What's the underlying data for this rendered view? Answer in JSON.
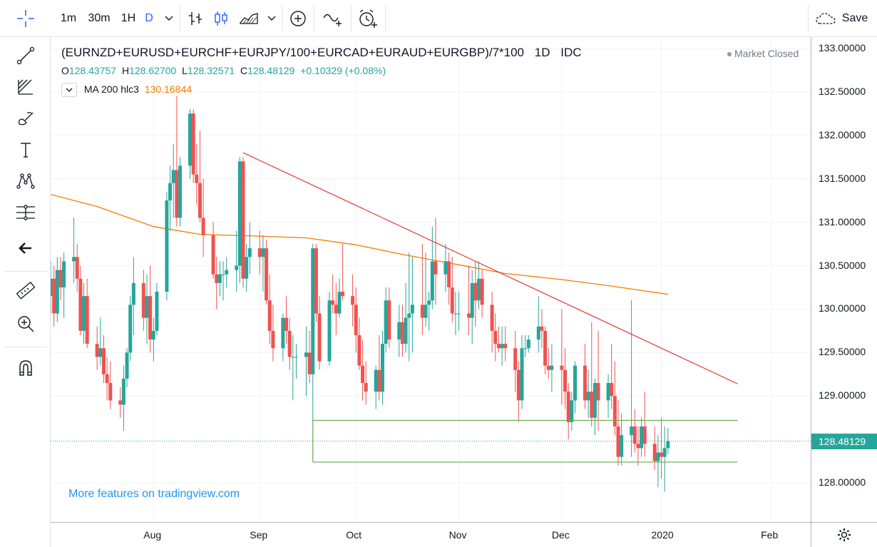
{
  "toolbar": {
    "intervals": [
      "1m",
      "30m",
      "1H",
      "D"
    ],
    "active_interval": "D",
    "save_label": "Save"
  },
  "legend": {
    "symbol": "(EURNZD+EURUSD+EURCHF+EURJPY/100+EURCAD+EURAUD+EURGBP)/7*100",
    "interval": "1D",
    "source": "IDC",
    "market_status": "Market Closed",
    "open_label": "O",
    "open": "128.43757",
    "high_label": "H",
    "high": "128.62700",
    "low_label": "L",
    "low": "128.32571",
    "close_label": "C",
    "close": "128.48129",
    "change": "+0.10329 (+0.08%)",
    "ma_label": "MA 200 hlc3",
    "ma_value": "130.16844"
  },
  "watermark": "More features on tradingview.com",
  "colors": {
    "up": "#26a69a",
    "down": "#ef5350",
    "ma": "#f57c00",
    "trendline": "#e53935",
    "range": "#6aa84f",
    "accent": "#2962ff",
    "last_price_bg": "#26a69a"
  },
  "icons": [
    "crosshair-icon",
    "trend-line-icon",
    "fib-icon",
    "brush-icon",
    "text-icon",
    "pattern-icon",
    "forecast-icon",
    "back-arrow-icon",
    "ruler-icon",
    "zoom-in-icon",
    "magnet-icon",
    "bar-style-icon",
    "candle-style-icon",
    "area-style-icon",
    "add-indicator-icon",
    "compare-icon",
    "alert-icon",
    "cloud-save-icon",
    "settings-icon"
  ],
  "chart_data": {
    "type": "candlestick",
    "price_labels": [
      "133.00000",
      "132.50000",
      "132.00000",
      "131.50000",
      "131.00000",
      "130.50000",
      "130.00000",
      "129.50000",
      "129.00000",
      "128.00000"
    ],
    "price_ticks": [
      133.0,
      132.5,
      132.0,
      131.5,
      131.0,
      130.5,
      130.0,
      129.5,
      129.0,
      128.0
    ],
    "time_labels": [
      "Aug",
      "Sep",
      "Oct",
      "Nov",
      "Dec",
      "2020",
      "Feb"
    ],
    "time_ticks": [
      "2019-08-01",
      "2019-09-02",
      "2019-10-01",
      "2019-11-01",
      "2019-12-02",
      "2020-01-01",
      "2020-02-03"
    ],
    "x_range": [
      "2019-07-01",
      "2020-02-15"
    ],
    "ylim": [
      127.55,
      133.13
    ],
    "last_price": 128.48129,
    "last_price_label": "128.48129",
    "grid": true,
    "candles": [
      [
        "2019-07-01",
        130.15,
        130.55,
        129.95,
        130.35
      ],
      [
        "2019-07-02",
        130.35,
        130.5,
        129.8,
        129.95
      ],
      [
        "2019-07-03",
        129.95,
        130.6,
        129.85,
        130.45
      ],
      [
        "2019-07-04",
        130.45,
        130.6,
        130.1,
        130.25
      ],
      [
        "2019-07-05",
        130.25,
        130.65,
        129.9,
        130.55
      ],
      [
        "2019-07-08",
        130.55,
        131.05,
        130.3,
        130.6
      ],
      [
        "2019-07-09",
        130.6,
        130.75,
        130.2,
        130.35
      ],
      [
        "2019-07-10",
        130.35,
        130.5,
        129.7,
        129.75
      ],
      [
        "2019-07-11",
        129.75,
        130.3,
        129.6,
        130.15
      ],
      [
        "2019-07-12",
        130.15,
        130.35,
        129.55,
        129.6
      ],
      [
        "2019-07-15",
        129.6,
        129.8,
        129.3,
        129.45
      ],
      [
        "2019-07-16",
        129.45,
        129.9,
        129.35,
        129.55
      ],
      [
        "2019-07-17",
        129.55,
        129.7,
        129.15,
        129.25
      ],
      [
        "2019-07-18",
        129.25,
        129.45,
        128.95,
        129.15
      ],
      [
        "2019-07-19",
        129.15,
        129.4,
        128.85,
        128.95
      ],
      [
        "2019-07-22",
        128.95,
        129.1,
        128.75,
        128.9
      ],
      [
        "2019-07-23",
        128.9,
        129.35,
        128.6,
        129.2
      ],
      [
        "2019-07-24",
        129.2,
        129.55,
        129.1,
        129.5
      ],
      [
        "2019-07-25",
        129.5,
        130.15,
        129.4,
        130.05
      ],
      [
        "2019-07-26",
        130.05,
        130.6,
        129.7,
        130.3
      ],
      [
        "2019-07-29",
        130.3,
        130.45,
        129.75,
        129.9
      ],
      [
        "2019-07-30",
        129.9,
        130.4,
        129.6,
        130.15
      ],
      [
        "2019-07-31",
        130.15,
        130.5,
        129.5,
        129.65
      ],
      [
        "2019-08-01",
        129.65,
        129.9,
        129.4,
        129.75
      ],
      [
        "2019-08-02",
        129.75,
        130.3,
        129.7,
        130.2
      ],
      [
        "2019-08-05",
        130.2,
        131.35,
        130.1,
        131.25
      ],
      [
        "2019-08-06",
        131.25,
        131.65,
        130.9,
        131.45
      ],
      [
        "2019-08-07",
        131.45,
        131.9,
        131.05,
        131.6
      ],
      [
        "2019-08-08",
        131.6,
        132.45,
        130.95,
        131.05
      ],
      [
        "2019-08-09",
        131.05,
        131.75,
        130.95,
        131.65
      ],
      [
        "2019-08-12",
        131.65,
        132.3,
        131.5,
        132.25
      ],
      [
        "2019-08-13",
        132.25,
        132.3,
        131.45,
        131.55
      ],
      [
        "2019-08-14",
        131.55,
        131.9,
        131.2,
        131.45
      ],
      [
        "2019-08-15",
        131.45,
        132.05,
        131.0,
        131.05
      ],
      [
        "2019-08-16",
        131.05,
        131.5,
        130.6,
        130.85
      ],
      [
        "2019-08-19",
        130.85,
        131.0,
        130.35,
        130.4
      ],
      [
        "2019-08-20",
        130.4,
        130.6,
        130.0,
        130.3
      ],
      [
        "2019-08-21",
        130.3,
        130.55,
        130.15,
        130.4
      ],
      [
        "2019-08-22",
        130.4,
        130.55,
        130.1,
        130.4
      ],
      [
        "2019-08-23",
        130.4,
        130.6,
        130.25,
        130.45
      ],
      [
        "2019-08-26",
        130.45,
        130.9,
        130.2,
        130.5
      ],
      [
        "2019-08-27",
        130.5,
        131.75,
        130.3,
        131.7
      ],
      [
        "2019-08-28",
        131.7,
        131.75,
        130.25,
        130.35
      ],
      [
        "2019-08-29",
        130.35,
        130.75,
        130.2,
        130.6
      ],
      [
        "2019-08-30",
        130.6,
        131.0,
        130.4,
        130.7
      ],
      [
        "2019-09-02",
        130.7,
        130.9,
        130.4,
        130.6
      ],
      [
        "2019-09-03",
        130.6,
        130.85,
        130.2,
        130.7
      ],
      [
        "2019-09-04",
        130.7,
        130.8,
        130.05,
        130.1
      ],
      [
        "2019-09-05",
        130.1,
        130.4,
        129.6,
        129.75
      ],
      [
        "2019-09-06",
        129.75,
        130.05,
        129.4,
        129.55
      ],
      [
        "2019-09-09",
        129.55,
        129.95,
        129.4,
        129.9
      ],
      [
        "2019-09-10",
        129.9,
        130.15,
        129.6,
        129.75
      ],
      [
        "2019-09-11",
        129.75,
        129.9,
        129.3,
        129.45
      ],
      [
        "2019-09-12",
        129.45,
        129.7,
        128.95,
        129.45
      ],
      [
        "2019-09-13",
        129.45,
        129.6,
        129.2,
        129.45
      ],
      [
        "2019-09-16",
        129.45,
        129.8,
        129.0,
        129.5
      ],
      [
        "2019-09-17",
        129.5,
        129.75,
        129.15,
        129.25
      ],
      [
        "2019-09-18",
        129.25,
        130.75,
        128.7,
        130.7
      ],
      [
        "2019-09-19",
        130.7,
        130.75,
        129.85,
        129.95
      ],
      [
        "2019-09-20",
        129.95,
        130.15,
        129.3,
        129.4
      ],
      [
        "2019-09-23",
        129.4,
        130.2,
        129.35,
        130.1
      ],
      [
        "2019-09-24",
        130.1,
        130.4,
        129.95,
        130.05
      ],
      [
        "2019-09-25",
        130.05,
        130.3,
        129.7,
        129.95
      ],
      [
        "2019-09-26",
        129.95,
        130.35,
        129.9,
        130.2
      ],
      [
        "2019-09-27",
        130.2,
        130.75,
        130.1,
        130.15
      ],
      [
        "2019-09-30",
        130.15,
        130.4,
        129.8,
        130.05
      ],
      [
        "2019-10-01",
        130.05,
        130.25,
        129.5,
        129.7
      ],
      [
        "2019-10-02",
        129.7,
        129.9,
        129.3,
        129.35
      ],
      [
        "2019-10-03",
        129.35,
        129.65,
        128.95,
        129.15
      ],
      [
        "2019-10-04",
        129.15,
        129.4,
        128.9,
        129.05
      ],
      [
        "2019-10-07",
        129.05,
        129.35,
        128.85,
        129.3
      ],
      [
        "2019-10-08",
        129.3,
        129.7,
        128.95,
        129.05
      ],
      [
        "2019-10-09",
        129.05,
        129.75,
        128.9,
        129.6
      ],
      [
        "2019-10-10",
        129.6,
        130.25,
        129.5,
        130.1
      ],
      [
        "2019-10-11",
        130.1,
        130.25,
        129.55,
        129.65
      ],
      [
        "2019-10-14",
        129.65,
        130.05,
        129.45,
        129.85
      ],
      [
        "2019-10-15",
        129.85,
        130.05,
        129.45,
        129.6
      ],
      [
        "2019-10-16",
        129.6,
        130.3,
        129.5,
        129.9
      ],
      [
        "2019-10-17",
        129.9,
        130.65,
        129.4,
        129.95
      ],
      [
        "2019-10-18",
        129.95,
        130.6,
        129.5,
        130.05
      ],
      [
        "2019-10-21",
        130.05,
        130.75,
        129.7,
        129.9
      ],
      [
        "2019-10-22",
        129.9,
        130.65,
        129.8,
        130.05
      ],
      [
        "2019-10-23",
        130.05,
        130.2,
        129.75,
        130.1
      ],
      [
        "2019-10-24",
        130.1,
        130.95,
        130.0,
        130.55
      ],
      [
        "2019-10-25",
        130.55,
        131.05,
        130.05,
        130.4
      ],
      [
        "2019-10-28",
        130.4,
        130.75,
        130.2,
        130.55
      ],
      [
        "2019-10-29",
        130.55,
        130.65,
        130.05,
        130.25
      ],
      [
        "2019-10-30",
        130.25,
        130.6,
        129.85,
        129.95
      ],
      [
        "2019-10-31",
        129.95,
        130.2,
        129.7,
        129.95
      ],
      [
        "2019-11-01",
        129.95,
        130.2,
        129.75,
        129.95
      ],
      [
        "2019-11-04",
        129.95,
        130.5,
        129.7,
        129.9
      ],
      [
        "2019-11-05",
        129.9,
        130.45,
        129.6,
        130.3
      ],
      [
        "2019-11-06",
        130.3,
        130.55,
        129.8,
        130.1
      ],
      [
        "2019-11-07",
        130.1,
        130.55,
        130.0,
        130.35
      ],
      [
        "2019-11-08",
        130.35,
        130.45,
        129.9,
        130.05
      ],
      [
        "2019-11-11",
        130.05,
        130.2,
        129.5,
        129.75
      ],
      [
        "2019-11-12",
        129.75,
        129.95,
        129.4,
        129.6
      ],
      [
        "2019-11-13",
        129.6,
        129.8,
        129.5,
        129.55
      ],
      [
        "2019-11-14",
        129.55,
        129.8,
        129.35,
        129.6
      ],
      [
        "2019-11-15",
        129.6,
        129.8,
        129.4,
        129.55
      ],
      [
        "2019-11-18",
        129.55,
        129.75,
        129.05,
        129.3
      ],
      [
        "2019-11-19",
        129.3,
        129.4,
        128.7,
        128.95
      ],
      [
        "2019-11-20",
        128.95,
        129.7,
        128.85,
        129.55
      ],
      [
        "2019-11-21",
        129.55,
        129.7,
        129.45,
        129.55
      ],
      [
        "2019-11-22",
        129.55,
        129.7,
        129.5,
        129.65
      ],
      [
        "2019-11-25",
        129.65,
        130.15,
        129.5,
        129.8
      ],
      [
        "2019-11-26",
        129.8,
        130.0,
        129.55,
        129.75
      ],
      [
        "2019-11-27",
        129.75,
        129.8,
        129.25,
        129.35
      ],
      [
        "2019-11-28",
        129.35,
        129.55,
        129.2,
        129.3
      ],
      [
        "2019-11-29",
        129.3,
        129.6,
        129.05,
        129.35
      ],
      [
        "2019-12-02",
        129.35,
        130.0,
        128.9,
        129.3
      ],
      [
        "2019-12-03",
        129.3,
        129.55,
        128.85,
        129.05
      ],
      [
        "2019-12-04",
        129.05,
        129.15,
        128.5,
        128.7
      ],
      [
        "2019-12-05",
        128.7,
        129.05,
        128.6,
        128.95
      ],
      [
        "2019-12-06",
        128.95,
        129.4,
        128.8,
        129.35
      ],
      [
        "2019-12-09",
        129.35,
        129.6,
        128.85,
        128.95
      ],
      [
        "2019-12-10",
        128.95,
        129.3,
        128.75,
        129.05
      ],
      [
        "2019-12-11",
        129.05,
        129.85,
        128.65,
        128.75
      ],
      [
        "2019-12-12",
        128.75,
        129.2,
        128.55,
        129.15
      ],
      [
        "2019-12-13",
        129.15,
        129.75,
        128.6,
        128.95
      ],
      [
        "2019-12-16",
        128.95,
        129.25,
        128.75,
        129.15
      ],
      [
        "2019-12-17",
        129.15,
        129.6,
        128.85,
        129.0
      ],
      [
        "2019-12-18",
        129.0,
        129.4,
        128.55,
        128.65
      ],
      [
        "2019-12-19",
        128.65,
        128.95,
        128.2,
        128.3
      ],
      [
        "2019-12-20",
        128.3,
        128.8,
        128.2,
        128.55
      ],
      [
        "2019-12-23",
        128.55,
        130.1,
        128.3,
        128.65
      ],
      [
        "2019-12-24",
        128.65,
        128.85,
        128.35,
        128.45
      ],
      [
        "2019-12-25",
        128.45,
        128.65,
        128.2,
        128.4
      ],
      [
        "2019-12-26",
        128.4,
        128.75,
        128.3,
        128.65
      ],
      [
        "2019-12-27",
        128.65,
        129.05,
        128.3,
        128.45
      ],
      [
        "2019-12-30",
        128.45,
        128.65,
        128.15,
        128.25
      ],
      [
        "2019-12-31",
        128.25,
        128.55,
        127.95,
        128.35
      ],
      [
        "2020-01-01",
        128.35,
        128.75,
        128.05,
        128.3
      ],
      [
        "2020-01-02",
        128.3,
        128.65,
        127.9,
        128.4
      ],
      [
        "2020-01-03",
        128.4,
        128.63,
        128.33,
        128.48
      ]
    ],
    "ma200": [
      [
        "2019-07-01",
        131.32
      ],
      [
        "2019-07-15",
        131.18
      ],
      [
        "2019-08-01",
        130.95
      ],
      [
        "2019-08-15",
        130.86
      ],
      [
        "2019-09-02",
        130.84
      ],
      [
        "2019-09-16",
        130.82
      ],
      [
        "2019-10-01",
        130.74
      ],
      [
        "2019-10-15",
        130.63
      ],
      [
        "2019-11-01",
        130.51
      ],
      [
        "2019-11-15",
        130.41
      ],
      [
        "2019-12-02",
        130.34
      ],
      [
        "2019-12-16",
        130.27
      ],
      [
        "2020-01-03",
        130.17
      ]
    ],
    "trendline": [
      [
        "2019-08-28",
        131.8
      ],
      [
        "2020-01-24",
        129.14
      ]
    ],
    "range_box": {
      "start": "2019-09-18",
      "end": "2020-01-24",
      "top": 128.72,
      "bottom": 128.24
    }
  }
}
